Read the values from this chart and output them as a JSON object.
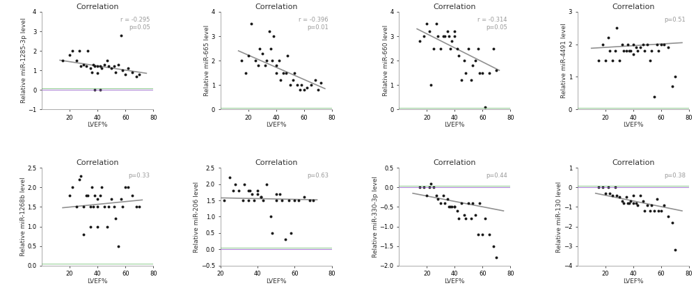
{
  "subplots": [
    {
      "title": "Correlation",
      "ylabel": "Relative miR-1285-3p level",
      "xlabel": "LVEF%",
      "annotation": "r = -0.295\np=0.05",
      "ann_color": "#999999",
      "xlim": [
        0,
        80
      ],
      "ylim": [
        -1,
        4
      ],
      "yticks": [
        -1,
        0,
        1,
        2,
        3,
        4
      ],
      "xticks": [
        20,
        40,
        60,
        80
      ],
      "trend": [
        13,
        75,
        1.52,
        0.85
      ],
      "zero_line_y": 0,
      "scatter_x": [
        15,
        20,
        22,
        25,
        27,
        28,
        30,
        32,
        33,
        35,
        36,
        37,
        38,
        40,
        40,
        42,
        43,
        45,
        47,
        48,
        50,
        52,
        53,
        55,
        57,
        58,
        60,
        62,
        65,
        68,
        70,
        38,
        42
      ],
      "scatter_y": [
        1.5,
        1.8,
        2.0,
        1.5,
        2.0,
        1.2,
        1.3,
        1.2,
        2.0,
        1.1,
        0.9,
        1.3,
        1.2,
        1.2,
        0.85,
        1.2,
        1.1,
        1.3,
        1.5,
        1.2,
        1.1,
        1.2,
        0.9,
        1.3,
        2.8,
        1.0,
        0.8,
        1.1,
        0.9,
        0.7,
        0.8,
        0.0,
        0.0
      ]
    },
    {
      "title": "Correlation",
      "ylabel": "Relative miR-665 level",
      "xlabel": "LVEF%",
      "annotation": "r = -0.396\np=0.01",
      "ann_color": "#999999",
      "xlim": [
        0,
        80
      ],
      "ylim": [
        0,
        4
      ],
      "yticks": [
        0,
        1,
        2,
        3,
        4
      ],
      "xticks": [
        20,
        40,
        60,
        80
      ],
      "trend": [
        13,
        75,
        2.4,
        0.85
      ],
      "zero_line_y": 0,
      "scatter_x": [
        15,
        18,
        20,
        22,
        25,
        27,
        28,
        30,
        32,
        33,
        35,
        36,
        37,
        38,
        40,
        40,
        42,
        43,
        45,
        47,
        48,
        50,
        52,
        53,
        55,
        57,
        58,
        60,
        62,
        65,
        68,
        70,
        72
      ],
      "scatter_y": [
        2.0,
        1.5,
        2.2,
        3.5,
        2.0,
        1.8,
        2.5,
        2.3,
        1.8,
        2.0,
        3.2,
        2.5,
        2.0,
        3.0,
        1.5,
        1.8,
        2.0,
        1.2,
        1.5,
        1.5,
        2.2,
        1.0,
        1.2,
        1.5,
        1.0,
        0.8,
        1.0,
        0.8,
        0.9,
        1.0,
        1.2,
        0.8,
        1.1
      ]
    },
    {
      "title": "Correlation",
      "ylabel": "Relative miR-660 level",
      "xlabel": "LVEF%",
      "annotation": "r = -0.314\np=0.05",
      "ann_color": "#999999",
      "xlim": [
        0,
        80
      ],
      "ylim": [
        0,
        4
      ],
      "yticks": [
        0,
        1,
        2,
        3,
        4
      ],
      "xticks": [
        20,
        40,
        60,
        80
      ],
      "trend": [
        13,
        72,
        3.3,
        1.6
      ],
      "zero_line_y": 0,
      "scatter_x": [
        15,
        18,
        20,
        22,
        23,
        25,
        27,
        28,
        30,
        32,
        33,
        35,
        36,
        37,
        38,
        40,
        40,
        42,
        43,
        45,
        47,
        48,
        50,
        52,
        53,
        55,
        57,
        58,
        60,
        62,
        65,
        68,
        70
      ],
      "scatter_y": [
        2.8,
        3.0,
        3.5,
        3.2,
        1.0,
        2.5,
        3.5,
        3.0,
        2.5,
        3.0,
        3.0,
        3.2,
        3.0,
        2.5,
        2.8,
        3.2,
        3.0,
        2.5,
        2.2,
        1.2,
        2.0,
        1.5,
        2.5,
        1.2,
        1.8,
        2.0,
        2.5,
        1.5,
        1.5,
        0.1,
        1.5,
        2.5,
        1.6
      ]
    },
    {
      "title": "Correlation",
      "ylabel": "Relative miR-4491 level",
      "xlabel": "LVEF%",
      "annotation": "p=0.51",
      "ann_color": "#999999",
      "xlim": [
        0,
        80
      ],
      "ylim": [
        0,
        3
      ],
      "yticks": [
        0,
        1,
        2,
        3
      ],
      "xticks": [
        20,
        40,
        60,
        80
      ],
      "trend": [
        10,
        75,
        1.88,
        2.05
      ],
      "zero_line_y": 0,
      "scatter_x": [
        15,
        18,
        20,
        22,
        23,
        25,
        27,
        28,
        30,
        32,
        33,
        35,
        36,
        37,
        38,
        40,
        40,
        42,
        43,
        45,
        47,
        48,
        50,
        52,
        53,
        55,
        57,
        58,
        60,
        62,
        65,
        68,
        70
      ],
      "scatter_y": [
        1.5,
        2.0,
        1.5,
        2.2,
        1.8,
        1.5,
        1.8,
        2.5,
        1.5,
        2.0,
        1.8,
        1.8,
        2.0,
        1.8,
        1.8,
        2.0,
        1.7,
        1.9,
        1.8,
        1.9,
        2.0,
        1.8,
        2.0,
        1.5,
        1.8,
        0.4,
        2.0,
        1.8,
        2.0,
        2.0,
        1.9,
        0.7,
        1.0
      ]
    },
    {
      "title": "Correlation",
      "ylabel": "Relative miR-1268b level",
      "xlabel": "LVEF%",
      "annotation": "p=0.33",
      "ann_color": "#999999",
      "xlim": [
        0,
        80
      ],
      "ylim": [
        0,
        2.5
      ],
      "yticks": [
        0.0,
        0.5,
        1.0,
        1.5,
        2.0,
        2.5
      ],
      "xticks": [
        20,
        40,
        60,
        80
      ],
      "trend": [
        15,
        72,
        1.48,
        1.68
      ],
      "zero_line_y": 0,
      "scatter_x": [
        20,
        22,
        25,
        27,
        28,
        30,
        32,
        33,
        35,
        36,
        37,
        38,
        40,
        40,
        42,
        43,
        45,
        47,
        48,
        50,
        52,
        53,
        55,
        57,
        58,
        60,
        62,
        65,
        68,
        70,
        30,
        35,
        40
      ],
      "scatter_y": [
        1.8,
        2.0,
        1.5,
        2.2,
        2.3,
        1.5,
        1.8,
        1.8,
        1.5,
        2.0,
        1.5,
        1.8,
        1.5,
        1.7,
        1.8,
        2.0,
        1.5,
        1.0,
        1.5,
        1.7,
        1.5,
        1.2,
        0.5,
        1.7,
        1.5,
        2.0,
        2.0,
        1.8,
        1.5,
        1.5,
        0.8,
        1.0,
        1.0
      ]
    },
    {
      "title": "Correlation",
      "ylabel": "Relative miR-206 level",
      "xlabel": "LVEF%",
      "annotation": "p=0.63",
      "ann_color": "#999999",
      "xlim": [
        20,
        80
      ],
      "ylim": [
        -0.5,
        2.5
      ],
      "yticks": [
        -0.5,
        0.0,
        0.5,
        1.0,
        1.5,
        2.0,
        2.5
      ],
      "xticks": [
        20,
        40,
        60,
        80
      ],
      "trend": [
        20,
        72,
        1.58,
        1.52
      ],
      "zero_line_y": 0,
      "scatter_x": [
        22,
        25,
        27,
        28,
        30,
        32,
        33,
        35,
        36,
        37,
        38,
        40,
        40,
        42,
        43,
        45,
        47,
        48,
        50,
        52,
        53,
        55,
        57,
        58,
        60,
        62,
        65,
        68,
        70,
        35,
        42,
        50
      ],
      "scatter_y": [
        1.5,
        2.2,
        1.8,
        2.0,
        1.8,
        1.5,
        2.0,
        1.5,
        1.8,
        1.7,
        1.5,
        1.7,
        1.8,
        1.6,
        1.5,
        2.0,
        1.0,
        0.5,
        1.5,
        1.7,
        1.5,
        0.3,
        1.5,
        0.5,
        1.5,
        1.5,
        1.6,
        1.5,
        1.5,
        1.8,
        1.6,
        1.7
      ]
    },
    {
      "title": "Correlation",
      "ylabel": "Relative miR-330-3p level",
      "xlabel": "LVEF%",
      "annotation": "p=0.44",
      "ann_color": "#999999",
      "xlim": [
        0,
        80
      ],
      "ylim": [
        -2.0,
        0.5
      ],
      "yticks": [
        -2.0,
        -1.5,
        -1.0,
        -0.5,
        0.0,
        0.5
      ],
      "xticks": [
        20,
        40,
        60,
        80
      ],
      "trend": [
        10,
        75,
        -0.15,
        -0.6
      ],
      "zero_line_y": 0,
      "scatter_x": [
        15,
        18,
        20,
        22,
        23,
        25,
        27,
        28,
        30,
        32,
        33,
        35,
        36,
        37,
        38,
        40,
        40,
        42,
        43,
        45,
        47,
        48,
        50,
        52,
        53,
        55,
        57,
        58,
        60,
        62,
        65,
        68,
        70
      ],
      "scatter_y": [
        0.0,
        0.0,
        -0.2,
        0.0,
        0.1,
        0.0,
        -0.2,
        -0.3,
        -0.4,
        -0.2,
        -0.4,
        -0.3,
        -0.5,
        -0.5,
        -0.5,
        -0.5,
        -0.5,
        -0.6,
        -0.8,
        -0.4,
        -0.7,
        -0.8,
        -0.4,
        -0.8,
        -0.4,
        -0.7,
        -1.2,
        -0.4,
        -1.2,
        -0.8,
        -1.2,
        -1.5,
        -1.8
      ]
    },
    {
      "title": "Correlation",
      "ylabel": "Relative miR-130 level",
      "xlabel": "LVEF%",
      "annotation": "p=0.38",
      "ann_color": "#999999",
      "xlim": [
        0,
        80
      ],
      "ylim": [
        -4,
        1
      ],
      "yticks": [
        -4,
        -3,
        -2,
        -1,
        0,
        1
      ],
      "xticks": [
        20,
        40,
        60,
        80
      ],
      "trend": [
        13,
        75,
        -0.3,
        -1.2
      ],
      "zero_line_y": 0,
      "scatter_x": [
        15,
        18,
        20,
        22,
        23,
        25,
        27,
        28,
        30,
        32,
        33,
        35,
        36,
        37,
        38,
        40,
        40,
        42,
        43,
        45,
        47,
        48,
        50,
        52,
        53,
        55,
        57,
        58,
        60,
        62,
        65,
        68,
        70
      ],
      "scatter_y": [
        0.0,
        0.0,
        -0.3,
        0.0,
        -0.3,
        -0.4,
        0.0,
        -0.4,
        -0.5,
        -0.7,
        -0.8,
        -0.5,
        -0.8,
        -0.8,
        -0.7,
        -0.4,
        -0.8,
        -0.8,
        -0.9,
        -0.4,
        -0.7,
        -1.2,
        -0.9,
        -1.2,
        -0.9,
        -1.2,
        -0.6,
        -1.2,
        -1.2,
        -0.9,
        -1.5,
        -1.8,
        -3.2
      ]
    }
  ],
  "figure_bg": "#ffffff",
  "plot_bg": "#ffffff",
  "dot_color": "#1a1a1a",
  "dot_size": 8,
  "line_color": "#909090",
  "title_fontsize": 8,
  "label_fontsize": 6.5,
  "tick_fontsize": 6,
  "ann_fontsize": 6,
  "purple_line_color": "#9966cc",
  "green_line_color": "#44aa44"
}
